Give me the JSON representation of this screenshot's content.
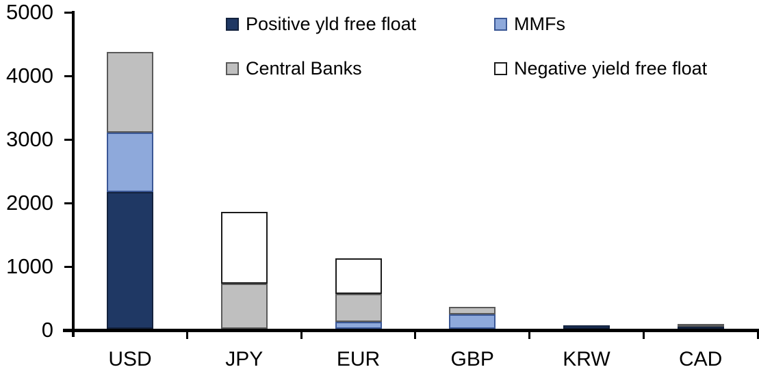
{
  "chart_data": {
    "type": "bar",
    "stacked": true,
    "title": "",
    "xlabel": "",
    "ylabel": "",
    "categories": [
      "USD",
      "JPY",
      "EUR",
      "GBP",
      "KRW",
      "CAD"
    ],
    "series": [
      {
        "name": "Positive yld free float",
        "color": "#1F3864",
        "border": "#13223d",
        "values": [
          2150,
          0,
          0,
          0,
          50,
          40
        ]
      },
      {
        "name": "MMFs",
        "color": "#8EA9DB",
        "border": "#3a5795",
        "values": [
          940,
          0,
          110,
          230,
          0,
          0
        ]
      },
      {
        "name": "Central Banks",
        "color": "#BFBFBF",
        "border": "#595959",
        "values": [
          1260,
          710,
          440,
          110,
          0,
          40
        ]
      },
      {
        "name": "Negative yield free float",
        "color": "#FFFFFF",
        "border": "#1a1a1a",
        "values": [
          0,
          1130,
          560,
          0,
          0,
          0
        ]
      }
    ],
    "totals": [
      4350,
      1840,
      1110,
      340,
      50,
      80
    ],
    "ylim": [
      0,
      5000
    ],
    "yticks": [
      0,
      1000,
      2000,
      3000,
      4000,
      5000
    ],
    "legend_position": "top",
    "grid": false,
    "axis_color": "#000000",
    "background": "#FFFFFF"
  }
}
